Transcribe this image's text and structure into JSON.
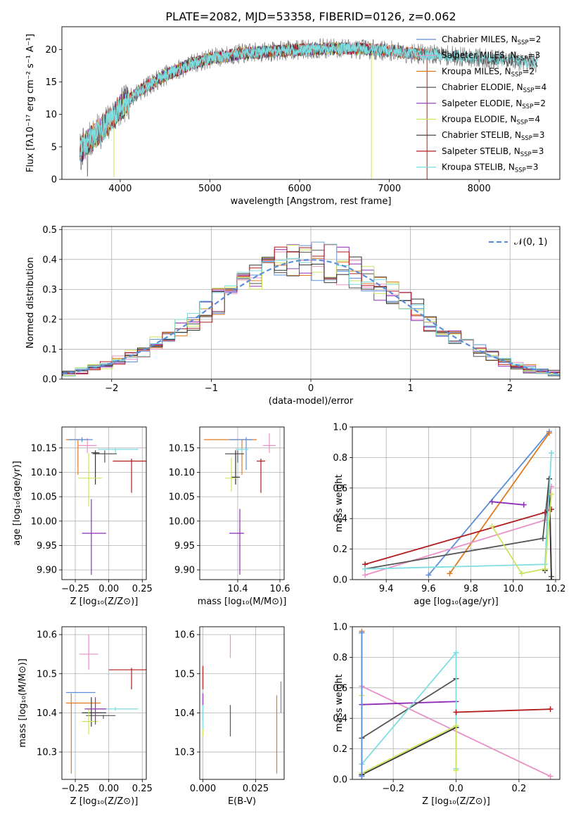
{
  "figure": {
    "title": "PLATE=2082, MJD=53358, FIBERID=0126, z=0.062"
  },
  "colors": {
    "chabrier_miles": "#5b8fd9",
    "salpeter_miles": "#e891c5",
    "kroupa_miles": "#e07b20",
    "chabrier_elodie": "#555555",
    "salpeter_elodie": "#8e2fb5",
    "kroupa_elodie": "#c9e55e",
    "chabrier_stelib": "#333333",
    "salpeter_stelib": "#b01c1c",
    "kroupa_stelib": "#7ddde0",
    "normal_curve": "#5b8fd9",
    "grid": "#b0b0b0"
  },
  "chart_data": [
    {
      "id": "spectrum",
      "type": "line",
      "xlabel": "wavelength [Angstrom, rest frame]",
      "ylabel": "Flux [fλ10⁻¹⁷ erg cm⁻² s⁻¹ A⁻¹]",
      "xlim": [
        3350,
        8900
      ],
      "ylim": [
        0,
        23.5
      ],
      "xticks": [
        "4000",
        "5000",
        "6000",
        "7000",
        "8000"
      ],
      "yticks": [
        "0",
        "5",
        "10",
        "15",
        "20"
      ],
      "grid": false,
      "legend_position": "right",
      "legend": [
        {
          "name": "Chabrier MILES, N",
          "sub": "SSP",
          "tail": "=2",
          "color_key": "chabrier_miles"
        },
        {
          "name": "Salpeter MILES, N",
          "sub": "SSP",
          "tail": "=3",
          "color_key": "salpeter_miles"
        },
        {
          "name": "Kroupa MILES, N",
          "sub": "SSP",
          "tail": "=2",
          "color_key": "kroupa_miles"
        },
        {
          "name": "Chabrier ELODIE, N",
          "sub": "SSP",
          "tail": "=4",
          "color_key": "chabrier_elodie"
        },
        {
          "name": "Salpeter ELODIE, N",
          "sub": "SSP",
          "tail": "=2",
          "color_key": "salpeter_elodie"
        },
        {
          "name": "Kroupa ELODIE, N",
          "sub": "SSP",
          "tail": "=4",
          "color_key": "kroupa_elodie"
        },
        {
          "name": "Chabrier STELIB, N",
          "sub": "SSP",
          "tail": "=3",
          "color_key": "chabrier_stelib"
        },
        {
          "name": "Salpeter STELIB, N",
          "sub": "SSP",
          "tail": "=3",
          "color_key": "salpeter_stelib"
        },
        {
          "name": "Kroupa STELIB, N",
          "sub": "SSP",
          "tail": "=3",
          "color_key": "kroupa_stelib"
        }
      ],
      "continuum": {
        "x": [
          3550,
          3700,
          3850,
          4000,
          4200,
          4500,
          4800,
          5000,
          5300,
          5600,
          5900,
          6200,
          6500,
          6800,
          7100,
          7300,
          7500,
          7700,
          8000,
          8400,
          8650
        ],
        "y": [
          4.5,
          6.5,
          8.5,
          11.0,
          13.5,
          16.0,
          17.8,
          18.6,
          19.3,
          19.6,
          19.9,
          20.1,
          20.2,
          20.0,
          19.7,
          19.3,
          19.2,
          19.0,
          18.7,
          18.2,
          18.0
        ]
      }
    },
    {
      "id": "residuals",
      "type": "histogram",
      "xlabel": "(data-model)/error",
      "ylabel": "Normed distribution",
      "xlim": [
        -2.5,
        2.5
      ],
      "ylim": [
        0,
        0.51
      ],
      "xticks": [
        "−2",
        "−1",
        "0",
        "1",
        "2"
      ],
      "yticks": [
        "0.0",
        "0.1",
        "0.2",
        "0.3",
        "0.4",
        "0.5"
      ],
      "grid": true,
      "legend_position": "top-right",
      "normal_label": "𝒩(0, 1)"
    },
    {
      "id": "age_vs_Z",
      "type": "scatter",
      "xlabel": "Z [log₁₀(Z/Z⊙)]",
      "ylabel": "age  [log₁₀(age/yr)]",
      "xlim": [
        -0.35,
        0.28
      ],
      "ylim": [
        9.88,
        10.193
      ],
      "xticks": [
        "−0.25",
        "0.00",
        "0.25"
      ],
      "yticks": [
        "9.90",
        "9.95",
        "10.00",
        "10.05",
        "10.10",
        "10.15"
      ],
      "grid": true,
      "points": [
        {
          "x": -0.23,
          "y": 10.167,
          "xlo": -0.32,
          "xhi": -0.15,
          "ylo": 10.095,
          "yhi": 10.167,
          "color_key": "kroupa_miles"
        },
        {
          "x": -0.16,
          "y": 10.155,
          "xlo": -0.23,
          "xhi": -0.09,
          "ylo": 10.14,
          "yhi": 10.17,
          "color_key": "salpeter_miles"
        },
        {
          "x": -0.2,
          "y": 10.167,
          "xlo": -0.3,
          "xhi": -0.12,
          "ylo": 10.162,
          "yhi": 10.172,
          "color_key": "chabrier_miles"
        },
        {
          "x": 0.05,
          "y": 10.147,
          "xlo": -0.08,
          "xhi": 0.22,
          "ylo": 10.14,
          "yhi": 10.15,
          "color_key": "kroupa_stelib"
        },
        {
          "x": -0.03,
          "y": 10.138,
          "xlo": -0.12,
          "xhi": 0.06,
          "ylo": 10.12,
          "yhi": 10.145,
          "color_key": "chabrier_elodie"
        },
        {
          "x": -0.1,
          "y": 10.14,
          "xlo": -0.13,
          "xhi": -0.07,
          "ylo": 10.075,
          "yhi": 10.145,
          "color_key": "chabrier_stelib"
        },
        {
          "x": -0.15,
          "y": 10.088,
          "xlo": -0.23,
          "xhi": -0.05,
          "ylo": 10.03,
          "yhi": 10.14,
          "color_key": "kroupa_elodie"
        },
        {
          "x": 0.17,
          "y": 10.123,
          "xlo": 0.03,
          "xhi": 0.31,
          "ylo": 10.058,
          "yhi": 10.128,
          "color_key": "salpeter_stelib"
        },
        {
          "x": -0.13,
          "y": 9.975,
          "xlo": -0.2,
          "xhi": -0.02,
          "ylo": 9.89,
          "yhi": 10.045,
          "color_key": "salpeter_elodie"
        }
      ]
    },
    {
      "id": "age_vs_mass",
      "type": "scatter",
      "xlabel": "mass [log₁₀(M/M⊙)]",
      "ylabel": "",
      "xlim": [
        10.22,
        10.62
      ],
      "ylim": [
        9.88,
        10.193
      ],
      "xticks": [
        "10.4",
        "10.6"
      ],
      "yticks": [
        "9.90",
        "9.95",
        "10.00",
        "10.05",
        "10.10",
        "10.15"
      ],
      "grid": true,
      "points": [
        {
          "x": 10.42,
          "y": 10.167,
          "xlo": 10.24,
          "xhi": 10.49,
          "ylo": 10.095,
          "yhi": 10.167,
          "color_key": "kroupa_miles"
        },
        {
          "x": 10.55,
          "y": 10.155,
          "xlo": 10.52,
          "xhi": 10.58,
          "ylo": 10.14,
          "yhi": 10.18,
          "color_key": "salpeter_miles"
        },
        {
          "x": 10.44,
          "y": 10.167,
          "xlo": 10.36,
          "xhi": 10.47,
          "ylo": 10.105,
          "yhi": 10.172,
          "color_key": "chabrier_miles"
        },
        {
          "x": 10.42,
          "y": 10.147,
          "xlo": 10.39,
          "xhi": 10.45,
          "ylo": 10.14,
          "yhi": 10.15,
          "color_key": "kroupa_stelib"
        },
        {
          "x": 10.4,
          "y": 10.138,
          "xlo": 10.34,
          "xhi": 10.43,
          "ylo": 10.12,
          "yhi": 10.145,
          "color_key": "chabrier_elodie"
        },
        {
          "x": 10.39,
          "y": 10.09,
          "xlo": 10.37,
          "xhi": 10.41,
          "ylo": 10.075,
          "yhi": 10.145,
          "color_key": "chabrier_stelib"
        },
        {
          "x": 10.37,
          "y": 10.088,
          "xlo": 10.34,
          "xhi": 10.4,
          "ylo": 10.06,
          "yhi": 10.13,
          "color_key": "kroupa_elodie"
        },
        {
          "x": 10.51,
          "y": 10.123,
          "xlo": 10.49,
          "xhi": 10.53,
          "ylo": 10.058,
          "yhi": 10.128,
          "color_key": "salpeter_stelib"
        },
        {
          "x": 10.41,
          "y": 9.975,
          "xlo": 10.36,
          "xhi": 10.43,
          "ylo": 9.89,
          "yhi": 10.025,
          "color_key": "salpeter_elodie"
        }
      ]
    },
    {
      "id": "mass_weight_vs_age",
      "type": "line",
      "xlabel": "age  [log₁₀(age/yr)]",
      "ylabel": "mass weight",
      "xlim": [
        9.24,
        10.22
      ],
      "ylim": [
        0,
        1.0
      ],
      "xticks": [
        "9.4",
        "9.6",
        "9.8",
        "10.0",
        "10.2"
      ],
      "yticks": [
        "0.0",
        "0.2",
        "0.4",
        "0.6",
        "0.8",
        "1.0"
      ],
      "grid": true,
      "series": [
        {
          "color_key": "chabrier_miles",
          "x": [
            9.6,
            10.17
          ],
          "y": [
            0.03,
            0.97
          ]
        },
        {
          "color_key": "kroupa_miles",
          "x": [
            9.7,
            10.17
          ],
          "y": [
            0.04,
            0.96
          ]
        },
        {
          "color_key": "salpeter_miles",
          "x": [
            9.3,
            10.15,
            10.18
          ],
          "y": [
            0.03,
            0.39,
            0.61
          ]
        },
        {
          "color_key": "salpeter_stelib",
          "x": [
            9.3,
            10.15,
            10.18
          ],
          "y": [
            0.1,
            0.44,
            0.46
          ]
        },
        {
          "color_key": "chabrier_elodie",
          "x": [
            9.3,
            10.14,
            10.17,
            10.18
          ],
          "y": [
            0.07,
            0.27,
            0.66,
            0.02
          ]
        },
        {
          "color_key": "chabrier_stelib",
          "x": [
            10.15,
            10.17,
            10.18
          ],
          "y": [
            0.06,
            0.66,
            0.0
          ]
        },
        {
          "color_key": "kroupa_stelib",
          "x": [
            9.3,
            10.15,
            10.18
          ],
          "y": [
            0.07,
            0.1,
            0.83
          ]
        },
        {
          "color_key": "kroupa_elodie",
          "x": [
            9.9,
            10.04,
            10.15,
            10.18
          ],
          "y": [
            0.35,
            0.04,
            0.07,
            0.56
          ]
        },
        {
          "color_key": "salpeter_elodie",
          "x": [
            9.9,
            10.05
          ],
          "y": [
            0.51,
            0.49
          ]
        }
      ]
    },
    {
      "id": "mass_vs_Z",
      "type": "scatter",
      "xlabel": "Z [log₁₀(Z/Z⊙)]",
      "ylabel": "mass [log₁₀(M/M⊙)]",
      "xlim": [
        -0.35,
        0.28
      ],
      "ylim": [
        10.23,
        10.62
      ],
      "xticks": [
        "−0.25",
        "0.00",
        "0.25"
      ],
      "yticks": [
        "10.3",
        "10.4",
        "10.5",
        "10.6"
      ],
      "grid": true,
      "points": [
        {
          "x": -0.3,
          "y": 10.452,
          "xlo": -0.32,
          "xhi": -0.1,
          "ylo": 10.452,
          "yhi": 10.452,
          "color_key": "chabrier_miles"
        },
        {
          "x": -0.28,
          "y": 10.425,
          "xlo": -0.32,
          "xhi": -0.06,
          "ylo": 10.245,
          "yhi": 10.45,
          "color_key": "kroupa_miles"
        },
        {
          "x": -0.15,
          "y": 10.55,
          "xlo": -0.22,
          "xhi": -0.08,
          "ylo": 10.51,
          "yhi": 10.6,
          "color_key": "salpeter_miles"
        },
        {
          "x": 0.17,
          "y": 10.51,
          "xlo": 0.0,
          "xhi": 0.3,
          "ylo": 10.46,
          "yhi": 10.515,
          "color_key": "salpeter_stelib"
        },
        {
          "x": 0.05,
          "y": 10.41,
          "xlo": -0.08,
          "xhi": 0.22,
          "ylo": 10.405,
          "yhi": 10.415,
          "color_key": "kroupa_stelib"
        },
        {
          "x": -0.04,
          "y": 10.393,
          "xlo": -0.17,
          "xhi": 0.05,
          "ylo": 10.385,
          "yhi": 10.395,
          "color_key": "chabrier_elodie"
        },
        {
          "x": -0.13,
          "y": 10.4,
          "xlo": -0.2,
          "xhi": -0.02,
          "ylo": 10.365,
          "yhi": 10.44,
          "color_key": "chabrier_stelib"
        },
        {
          "x": -0.15,
          "y": 10.378,
          "xlo": -0.2,
          "xhi": -0.08,
          "ylo": 10.345,
          "yhi": 10.41,
          "color_key": "kroupa_elodie"
        },
        {
          "x": -0.1,
          "y": 10.41,
          "xlo": -0.18,
          "xhi": -0.02,
          "ylo": 10.37,
          "yhi": 10.44,
          "color_key": "salpeter_elodie"
        }
      ]
    },
    {
      "id": "mass_vs_ebv",
      "type": "scatter",
      "xlabel": "E(B-V)",
      "ylabel": "",
      "xlim": [
        -0.0015,
        0.0385
      ],
      "ylim": [
        10.23,
        10.62
      ],
      "xticks": [
        "0.000",
        "0.025"
      ],
      "yticks": [
        "10.3",
        "10.4",
        "10.5",
        "10.6"
      ],
      "grid": true,
      "points": [
        {
          "x": 0.0,
          "y": 10.49,
          "xlo": 0.0,
          "xhi": 0.0,
          "ylo": 10.46,
          "yhi": 10.52,
          "color_key": "salpeter_stelib"
        },
        {
          "x": 0.0,
          "y": 10.41,
          "xlo": 0.0,
          "xhi": 0.0,
          "ylo": 10.38,
          "yhi": 10.45,
          "color_key": "salpeter_elodie"
        },
        {
          "x": 0.0,
          "y": 10.37,
          "xlo": 0.0,
          "xhi": 0.0,
          "ylo": 10.34,
          "yhi": 10.4,
          "color_key": "kroupa_elodie"
        },
        {
          "x": 0.0,
          "y": 10.39,
          "xlo": 0.0,
          "xhi": 0.0,
          "ylo": 10.36,
          "yhi": 10.42,
          "color_key": "kroupa_stelib"
        },
        {
          "x": 0.013,
          "y": 10.565,
          "xlo": 0.013,
          "xhi": 0.013,
          "ylo": 10.54,
          "yhi": 10.6,
          "color_key": "salpeter_miles"
        },
        {
          "x": 0.013,
          "y": 10.38,
          "xlo": 0.013,
          "xhi": 0.013,
          "ylo": 10.34,
          "yhi": 10.42,
          "color_key": "chabrier_elodie"
        },
        {
          "x": 0.035,
          "y": 10.35,
          "xlo": 0.035,
          "xhi": 0.035,
          "ylo": 10.245,
          "yhi": 10.445,
          "color_key": "kroupa_miles"
        },
        {
          "x": 0.037,
          "y": 10.44,
          "xlo": 0.037,
          "xhi": 0.037,
          "ylo": 10.4,
          "yhi": 10.48,
          "color_key": "chabrier_miles"
        }
      ]
    },
    {
      "id": "mass_weight_vs_Z",
      "type": "line",
      "xlabel": "Z [log₁₀(Z/Z⊙)]",
      "ylabel": "mass weight",
      "xlim": [
        -0.33,
        0.33
      ],
      "ylim": [
        0,
        1.0
      ],
      "xticks": [
        "−0.2",
        "0.0",
        "0.2"
      ],
      "yticks": [
        "0.0",
        "0.2",
        "0.4",
        "0.6",
        "0.8",
        "1.0"
      ],
      "grid": true,
      "series": [
        {
          "color_key": "kroupa_miles",
          "x": [
            -0.3,
            -0.3
          ],
          "y": [
            0.04,
            0.97
          ]
        },
        {
          "color_key": "salpeter_miles",
          "x": [
            -0.3,
            0.3
          ],
          "y": [
            0.61,
            0.02
          ]
        },
        {
          "color_key": "salpeter_elodie",
          "x": [
            -0.3,
            0.0
          ],
          "y": [
            0.49,
            0.51
          ]
        },
        {
          "color_key": "chabrier_elodie",
          "x": [
            -0.3,
            0.0
          ],
          "y": [
            0.27,
            0.66
          ]
        },
        {
          "color_key": "kroupa_stelib",
          "x": [
            -0.3,
            0.0,
            0.0
          ],
          "y": [
            0.1,
            0.83,
            0.07
          ]
        },
        {
          "color_key": "chabrier_stelib",
          "x": [
            -0.3,
            0.0
          ],
          "y": [
            0.03,
            0.34
          ]
        },
        {
          "color_key": "kroupa_elodie",
          "x": [
            -0.3,
            -0.3,
            0.0,
            0.0
          ],
          "y": [
            0.55,
            0.04,
            0.35,
            0.06
          ]
        },
        {
          "color_key": "salpeter_stelib",
          "x": [
            0.0,
            0.3
          ],
          "y": [
            0.44,
            0.46
          ]
        },
        {
          "color_key": "chabrier_miles",
          "x": [
            -0.3,
            -0.3
          ],
          "y": [
            0.02,
            0.96
          ]
        }
      ]
    }
  ]
}
